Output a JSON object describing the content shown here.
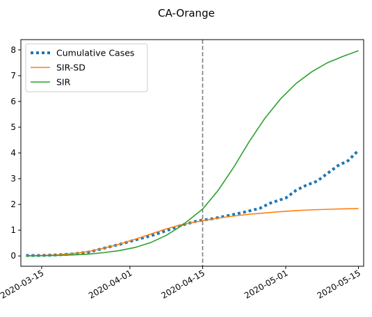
{
  "chart_data": {
    "type": "line",
    "title": "CA-Orange",
    "xlabel": "",
    "ylabel": "",
    "x_axis": {
      "type": "date",
      "range": [
        "2020-03-11",
        "2020-05-16"
      ],
      "ticks": [
        "2020-03-15",
        "2020-04-01",
        "2020-04-15",
        "2020-05-01",
        "2020-05-15"
      ]
    },
    "y_axis": {
      "range": [
        -0.4,
        8.4
      ],
      "ticks": [
        0,
        1,
        2,
        3,
        4,
        5,
        6,
        7,
        8
      ]
    },
    "grid": false,
    "legend_position": "top-left",
    "vline": {
      "x": "2020-04-15",
      "style": "dashed",
      "color": "#7f7f7f"
    },
    "series": [
      {
        "name": "Cumulative Cases",
        "style": "dotted",
        "color": "#1f77b4",
        "points": [
          [
            "2020-03-12",
            0.02
          ],
          [
            "2020-03-15",
            0.02
          ],
          [
            "2020-03-18",
            0.04
          ],
          [
            "2020-03-21",
            0.08
          ],
          [
            "2020-03-24",
            0.15
          ],
          [
            "2020-03-27",
            0.3
          ],
          [
            "2020-03-30",
            0.45
          ],
          [
            "2020-04-02",
            0.62
          ],
          [
            "2020-04-05",
            0.78
          ],
          [
            "2020-04-08",
            0.98
          ],
          [
            "2020-04-11",
            1.2
          ],
          [
            "2020-04-14",
            1.36
          ],
          [
            "2020-04-17",
            1.45
          ],
          [
            "2020-04-20",
            1.57
          ],
          [
            "2020-04-23",
            1.7
          ],
          [
            "2020-04-26",
            1.85
          ],
          [
            "2020-04-28",
            2.05
          ],
          [
            "2020-05-01",
            2.25
          ],
          [
            "2020-05-03",
            2.55
          ],
          [
            "2020-05-05",
            2.75
          ],
          [
            "2020-05-07",
            2.9
          ],
          [
            "2020-05-09",
            3.2
          ],
          [
            "2020-05-11",
            3.5
          ],
          [
            "2020-05-13",
            3.7
          ],
          [
            "2020-05-15",
            4.1
          ]
        ]
      },
      {
        "name": "SIR-SD",
        "style": "solid",
        "color": "#ff7f0e",
        "points": [
          [
            "2020-03-12",
            0.01
          ],
          [
            "2020-03-15",
            0.02
          ],
          [
            "2020-03-18",
            0.04
          ],
          [
            "2020-03-21",
            0.09
          ],
          [
            "2020-03-24",
            0.17
          ],
          [
            "2020-03-27",
            0.3
          ],
          [
            "2020-03-30",
            0.46
          ],
          [
            "2020-04-02",
            0.65
          ],
          [
            "2020-04-05",
            0.85
          ],
          [
            "2020-04-08",
            1.05
          ],
          [
            "2020-04-11",
            1.22
          ],
          [
            "2020-04-15",
            1.37
          ],
          [
            "2020-04-18",
            1.47
          ],
          [
            "2020-04-21",
            1.55
          ],
          [
            "2020-04-24",
            1.62
          ],
          [
            "2020-04-27",
            1.67
          ],
          [
            "2020-04-30",
            1.72
          ],
          [
            "2020-05-03",
            1.76
          ],
          [
            "2020-05-06",
            1.79
          ],
          [
            "2020-05-09",
            1.81
          ],
          [
            "2020-05-12",
            1.83
          ],
          [
            "2020-05-15",
            1.84
          ]
        ]
      },
      {
        "name": "SIR",
        "style": "solid",
        "color": "#2ca02c",
        "points": [
          [
            "2020-03-12",
            0.0
          ],
          [
            "2020-03-15",
            0.01
          ],
          [
            "2020-03-18",
            0.02
          ],
          [
            "2020-03-21",
            0.04
          ],
          [
            "2020-03-24",
            0.07
          ],
          [
            "2020-03-27",
            0.13
          ],
          [
            "2020-03-30",
            0.21
          ],
          [
            "2020-04-02",
            0.33
          ],
          [
            "2020-04-05",
            0.52
          ],
          [
            "2020-04-08",
            0.8
          ],
          [
            "2020-04-11",
            1.18
          ],
          [
            "2020-04-15",
            1.82
          ],
          [
            "2020-04-18",
            2.55
          ],
          [
            "2020-04-21",
            3.45
          ],
          [
            "2020-04-24",
            4.45
          ],
          [
            "2020-04-27",
            5.35
          ],
          [
            "2020-04-30",
            6.1
          ],
          [
            "2020-05-03",
            6.7
          ],
          [
            "2020-05-06",
            7.15
          ],
          [
            "2020-05-09",
            7.5
          ],
          [
            "2020-05-12",
            7.75
          ],
          [
            "2020-05-15",
            7.97
          ]
        ]
      }
    ]
  }
}
